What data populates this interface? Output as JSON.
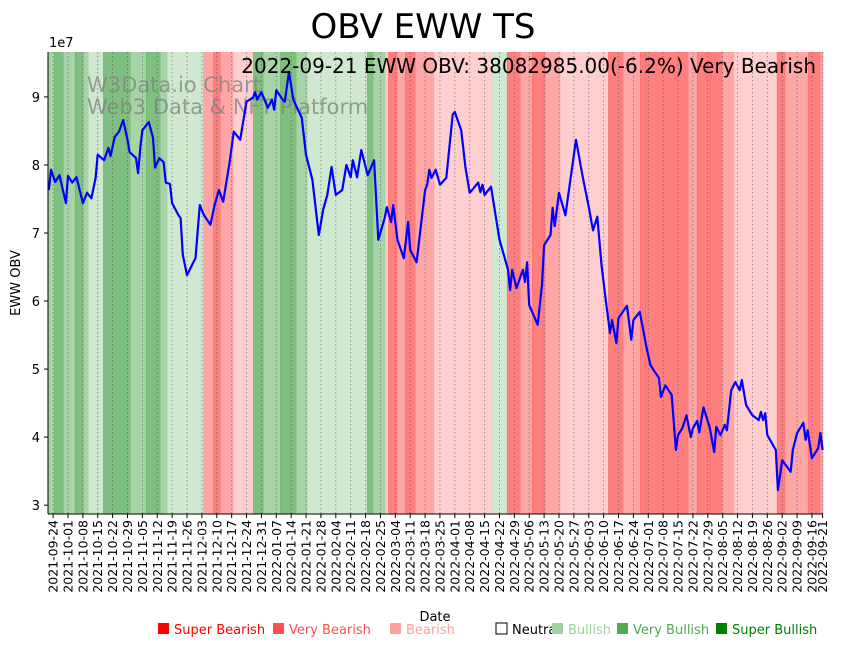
{
  "chart_data": {
    "type": "line",
    "title": "OBV EWW TS",
    "annotation": "2022-09-21 EWW OBV: 38082985.00(-6.2%) Very Bearish",
    "watermark": [
      "W3Data.io Chart",
      "Web3 Data & NFT Platform"
    ],
    "xlabel": "Date",
    "ylabel": "EWW OBV",
    "y_scale_label": "1e7",
    "x_origin_date": "2021-09-24",
    "x_unit": "days since 2021-09-24",
    "xlim": [
      -2.4,
      362.2
    ],
    "ylim": [
      2.87,
      9.66
    ],
    "yticks": [
      3,
      4,
      5,
      6,
      7,
      8,
      9
    ],
    "xticks": [
      {
        "day": 0,
        "label": "2021-09-24"
      },
      {
        "day": 7,
        "label": "2021-10-01"
      },
      {
        "day": 14,
        "label": "2021-10-08"
      },
      {
        "day": 21,
        "label": "2021-10-15"
      },
      {
        "day": 28,
        "label": "2021-10-22"
      },
      {
        "day": 35,
        "label": "2021-10-29"
      },
      {
        "day": 42,
        "label": "2021-11-05"
      },
      {
        "day": 49,
        "label": "2021-11-12"
      },
      {
        "day": 56,
        "label": "2021-11-19"
      },
      {
        "day": 63,
        "label": "2021-11-26"
      },
      {
        "day": 70,
        "label": "2021-12-03"
      },
      {
        "day": 77,
        "label": "2021-12-10"
      },
      {
        "day": 84,
        "label": "2021-12-17"
      },
      {
        "day": 91,
        "label": "2021-12-24"
      },
      {
        "day": 98,
        "label": "2021-12-31"
      },
      {
        "day": 105,
        "label": "2022-01-07"
      },
      {
        "day": 112,
        "label": "2022-01-14"
      },
      {
        "day": 119,
        "label": "2022-01-21"
      },
      {
        "day": 126,
        "label": "2022-01-28"
      },
      {
        "day": 133,
        "label": "2022-02-04"
      },
      {
        "day": 140,
        "label": "2022-02-11"
      },
      {
        "day": 147,
        "label": "2022-02-18"
      },
      {
        "day": 154,
        "label": "2022-02-25"
      },
      {
        "day": 161,
        "label": "2022-03-04"
      },
      {
        "day": 168,
        "label": "2022-03-11"
      },
      {
        "day": 175,
        "label": "2022-03-18"
      },
      {
        "day": 182,
        "label": "2022-03-25"
      },
      {
        "day": 189,
        "label": "2022-04-01"
      },
      {
        "day": 196,
        "label": "2022-04-08"
      },
      {
        "day": 203,
        "label": "2022-04-15"
      },
      {
        "day": 210,
        "label": "2022-04-22"
      },
      {
        "day": 217,
        "label": "2022-04-29"
      },
      {
        "day": 224,
        "label": "2022-05-06"
      },
      {
        "day": 231,
        "label": "2022-05-13"
      },
      {
        "day": 238,
        "label": "2022-05-20"
      },
      {
        "day": 245,
        "label": "2022-05-27"
      },
      {
        "day": 252,
        "label": "2022-06-03"
      },
      {
        "day": 259,
        "label": "2022-06-10"
      },
      {
        "day": 266,
        "label": "2022-06-17"
      },
      {
        "day": 273,
        "label": "2022-06-24"
      },
      {
        "day": 280,
        "label": "2022-07-01"
      },
      {
        "day": 287,
        "label": "2022-07-08"
      },
      {
        "day": 294,
        "label": "2022-07-15"
      },
      {
        "day": 301,
        "label": "2022-07-22"
      },
      {
        "day": 308,
        "label": "2022-07-29"
      },
      {
        "day": 315,
        "label": "2022-08-05"
      },
      {
        "day": 322,
        "label": "2022-08-12"
      },
      {
        "day": 329,
        "label": "2022-08-19"
      },
      {
        "day": 336,
        "label": "2022-08-26"
      },
      {
        "day": 343,
        "label": "2022-09-02"
      },
      {
        "day": 350,
        "label": "2022-09-09"
      },
      {
        "day": 357,
        "label": "2022-09-16"
      },
      {
        "day": 362,
        "label": "2022-09-21"
      }
    ],
    "series": [
      {
        "name": "EWW OBV (1e7)",
        "color": "#0000ff",
        "points": [
          [
            -2,
            7.63
          ],
          [
            -1,
            7.93
          ],
          [
            1,
            7.75
          ],
          [
            3,
            7.85
          ],
          [
            6,
            7.44
          ],
          [
            7,
            7.84
          ],
          [
            9,
            7.74
          ],
          [
            11,
            7.82
          ],
          [
            14,
            7.44
          ],
          [
            16,
            7.59
          ],
          [
            18,
            7.51
          ],
          [
            20,
            7.81
          ],
          [
            21,
            8.15
          ],
          [
            24,
            8.07
          ],
          [
            26,
            8.25
          ],
          [
            27,
            8.13
          ],
          [
            29,
            8.41
          ],
          [
            31,
            8.49
          ],
          [
            33,
            8.66
          ],
          [
            35,
            8.37
          ],
          [
            36,
            8.19
          ],
          [
            39,
            8.1
          ],
          [
            40,
            7.88
          ],
          [
            41,
            8.25
          ],
          [
            42,
            8.51
          ],
          [
            45,
            8.63
          ],
          [
            47,
            8.4
          ],
          [
            48,
            7.96
          ],
          [
            50,
            8.1
          ],
          [
            52,
            8.04
          ],
          [
            53,
            7.74
          ],
          [
            55,
            7.72
          ],
          [
            56,
            7.44
          ],
          [
            59,
            7.26
          ],
          [
            60,
            7.22
          ],
          [
            61,
            6.68
          ],
          [
            63,
            6.38
          ],
          [
            66,
            6.57
          ],
          [
            67,
            6.63
          ],
          [
            69,
            7.41
          ],
          [
            71,
            7.26
          ],
          [
            74,
            7.12
          ],
          [
            76,
            7.41
          ],
          [
            78,
            7.63
          ],
          [
            80,
            7.46
          ],
          [
            83,
            8.03
          ],
          [
            85,
            8.49
          ],
          [
            88,
            8.37
          ],
          [
            91,
            8.93
          ],
          [
            94,
            8.99
          ],
          [
            95,
            9.07
          ],
          [
            96,
            8.96
          ],
          [
            98,
            9.07
          ],
          [
            101,
            8.84
          ],
          [
            103,
            8.96
          ],
          [
            104,
            8.81
          ],
          [
            105,
            9.1
          ],
          [
            108,
            8.96
          ],
          [
            109,
            8.93
          ],
          [
            111,
            9.37
          ],
          [
            113,
            8.96
          ],
          [
            117,
            8.69
          ],
          [
            119,
            8.15
          ],
          [
            122,
            7.78
          ],
          [
            125,
            6.97
          ],
          [
            127,
            7.34
          ],
          [
            129,
            7.56
          ],
          [
            131,
            7.97
          ],
          [
            133,
            7.56
          ],
          [
            136,
            7.63
          ],
          [
            138,
            8.0
          ],
          [
            140,
            7.82
          ],
          [
            141,
            8.07
          ],
          [
            143,
            7.82
          ],
          [
            145,
            8.22
          ],
          [
            148,
            7.85
          ],
          [
            151,
            8.07
          ],
          [
            153,
            6.9
          ],
          [
            156,
            7.22
          ],
          [
            157,
            7.38
          ],
          [
            159,
            7.16
          ],
          [
            160,
            7.41
          ],
          [
            162,
            6.9
          ],
          [
            165,
            6.63
          ],
          [
            167,
            7.16
          ],
          [
            168,
            6.75
          ],
          [
            171,
            6.57
          ],
          [
            175,
            7.63
          ],
          [
            176,
            7.71
          ],
          [
            177,
            7.93
          ],
          [
            178,
            7.81
          ],
          [
            180,
            7.93
          ],
          [
            182,
            7.71
          ],
          [
            185,
            7.81
          ],
          [
            188,
            8.74
          ],
          [
            189,
            8.78
          ],
          [
            192,
            8.51
          ],
          [
            194,
            7.96
          ],
          [
            196,
            7.59
          ],
          [
            200,
            7.74
          ],
          [
            201,
            7.6
          ],
          [
            202,
            7.71
          ],
          [
            203,
            7.56
          ],
          [
            206,
            7.68
          ],
          [
            210,
            6.9
          ],
          [
            213,
            6.57
          ],
          [
            214,
            6.46
          ],
          [
            215,
            6.16
          ],
          [
            216,
            6.46
          ],
          [
            218,
            6.19
          ],
          [
            221,
            6.46
          ],
          [
            222,
            6.28
          ],
          [
            223,
            6.57
          ],
          [
            224,
            5.94
          ],
          [
            228,
            5.65
          ],
          [
            230,
            6.24
          ],
          [
            231,
            6.82
          ],
          [
            234,
            6.97
          ],
          [
            235,
            7.37
          ],
          [
            236,
            7.1
          ],
          [
            238,
            7.59
          ],
          [
            241,
            7.26
          ],
          [
            246,
            8.37
          ],
          [
            249,
            7.85
          ],
          [
            252,
            7.38
          ],
          [
            254,
            7.04
          ],
          [
            256,
            7.24
          ],
          [
            258,
            6.53
          ],
          [
            260,
            6.01
          ],
          [
            262,
            5.53
          ],
          [
            263,
            5.72
          ],
          [
            265,
            5.38
          ],
          [
            266,
            5.75
          ],
          [
            270,
            5.93
          ],
          [
            272,
            5.43
          ],
          [
            273,
            5.72
          ],
          [
            276,
            5.84
          ],
          [
            279,
            5.35
          ],
          [
            281,
            5.06
          ],
          [
            283,
            4.96
          ],
          [
            285,
            4.87
          ],
          [
            286,
            4.59
          ],
          [
            288,
            4.76
          ],
          [
            291,
            4.62
          ],
          [
            293,
            3.81
          ],
          [
            294,
            4.03
          ],
          [
            296,
            4.13
          ],
          [
            298,
            4.32
          ],
          [
            300,
            4.0
          ],
          [
            301,
            4.13
          ],
          [
            303,
            4.24
          ],
          [
            304,
            4.07
          ],
          [
            306,
            4.44
          ],
          [
            309,
            4.13
          ],
          [
            311,
            3.78
          ],
          [
            312,
            4.15
          ],
          [
            314,
            4.03
          ],
          [
            316,
            4.18
          ],
          [
            317,
            4.1
          ],
          [
            319,
            4.69
          ],
          [
            321,
            4.81
          ],
          [
            323,
            4.69
          ],
          [
            324,
            4.84
          ],
          [
            326,
            4.47
          ],
          [
            329,
            4.32
          ],
          [
            332,
            4.25
          ],
          [
            333,
            4.37
          ],
          [
            334,
            4.25
          ],
          [
            335,
            4.35
          ],
          [
            336,
            4.03
          ],
          [
            340,
            3.81
          ],
          [
            341,
            3.22
          ],
          [
            343,
            3.66
          ],
          [
            347,
            3.49
          ],
          [
            348,
            3.81
          ],
          [
            350,
            4.06
          ],
          [
            353,
            4.21
          ],
          [
            354,
            3.96
          ],
          [
            355,
            4.1
          ],
          [
            357,
            3.69
          ],
          [
            360,
            3.84
          ],
          [
            361,
            4.06
          ],
          [
            362,
            3.81
          ]
        ]
      }
    ],
    "sentiment_bands": [
      [
        -2.4,
        0.5,
        "very_bullish"
      ],
      [
        0.5,
        4.7,
        "super_bullish"
      ],
      [
        4.7,
        10.3,
        "very_bullish"
      ],
      [
        10.3,
        14.1,
        "super_bullish"
      ],
      [
        14.1,
        16.5,
        "very_bullish"
      ],
      [
        16.5,
        23.5,
        "bullish"
      ],
      [
        23.5,
        36.2,
        "super_bullish"
      ],
      [
        36.2,
        43.7,
        "very_bullish"
      ],
      [
        43.7,
        50.3,
        "super_bullish"
      ],
      [
        50.3,
        53.6,
        "very_bullish"
      ],
      [
        53.6,
        70.6,
        "bullish"
      ],
      [
        70.6,
        75.3,
        "very_bearish"
      ],
      [
        75.3,
        78.6,
        "super_bearish"
      ],
      [
        78.6,
        84.7,
        "very_bearish"
      ],
      [
        84.7,
        94.1,
        "bearish"
      ],
      [
        94.1,
        98.8,
        "super_bullish"
      ],
      [
        98.8,
        106.8,
        "very_bullish"
      ],
      [
        106.8,
        114.3,
        "super_bullish"
      ],
      [
        114.3,
        119.5,
        "very_bullish"
      ],
      [
        119.5,
        147.7,
        "bullish"
      ],
      [
        147.7,
        150.5,
        "super_bullish"
      ],
      [
        150.5,
        156.2,
        "very_bullish"
      ],
      [
        156.2,
        157.6,
        "bearish"
      ],
      [
        157.6,
        161.8,
        "super_bearish"
      ],
      [
        161.8,
        165.6,
        "very_bearish"
      ],
      [
        165.6,
        170.3,
        "super_bearish"
      ],
      [
        170.3,
        179.2,
        "very_bearish"
      ],
      [
        179.2,
        206.5,
        "bearish"
      ],
      [
        206.5,
        213.5,
        "bullish"
      ],
      [
        213.5,
        219.7,
        "super_bearish"
      ],
      [
        219.7,
        225.3,
        "very_bearish"
      ],
      [
        225.3,
        231.4,
        "super_bearish"
      ],
      [
        231.4,
        238.5,
        "very_bearish"
      ],
      [
        238.5,
        261.1,
        "bearish"
      ],
      [
        261.1,
        268.1,
        "super_bearish"
      ],
      [
        268.1,
        276.1,
        "very_bearish"
      ],
      [
        276.1,
        278.5,
        "super_bearish"
      ],
      [
        278.5,
        298.7,
        "super_bearish"
      ],
      [
        298.7,
        302.9,
        "very_bearish"
      ],
      [
        302.9,
        309,
        "super_bearish"
      ],
      [
        309,
        314.7,
        "super_bearish"
      ],
      [
        314.7,
        320.3,
        "very_bearish"
      ],
      [
        320.3,
        340.5,
        "bearish"
      ],
      [
        340.5,
        344.3,
        "super_bearish"
      ],
      [
        344.3,
        355.1,
        "very_bearish"
      ],
      [
        355.1,
        360.8,
        "super_bearish"
      ],
      [
        360.8,
        362.2,
        "very_bearish"
      ]
    ],
    "legend": {
      "placement": "bottom",
      "items": [
        {
          "key": "super_bearish",
          "label": "Super Bearish",
          "color": "#ff0000"
        },
        {
          "key": "very_bearish",
          "label": "Very Bearish",
          "color": "#ff5050"
        },
        {
          "key": "bearish",
          "label": "Bearish",
          "color": "#ffa0a0"
        },
        {
          "key": "neutral",
          "label": "Neutral",
          "color": "#ffffff"
        },
        {
          "key": "bullish",
          "label": "Bullish",
          "color": "#a0d2a0"
        },
        {
          "key": "very_bullish",
          "label": "Very Bullish",
          "color": "#50aa50"
        },
        {
          "key": "super_bullish",
          "label": "Super Bullish",
          "color": "#008000"
        }
      ]
    },
    "grid": "vertical dotted at x ticks"
  }
}
